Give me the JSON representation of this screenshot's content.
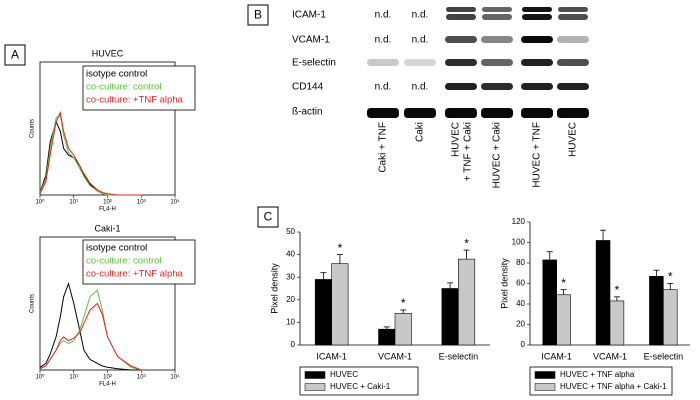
{
  "panels": [
    "A",
    "B",
    "C"
  ],
  "blot": {
    "rows": [
      "ICAM-1",
      "VCAM-1",
      "E-selectin",
      "CD144",
      "ß-actin"
    ],
    "lanes": [
      "Caki + TNF",
      "Caki",
      [
        "HUVEC",
        "+ TNF + Caki"
      ],
      "HUVEC + Caki",
      "HUVEC + TNF",
      "HUVEC"
    ],
    "cells": [
      [
        "n.d.",
        "n.d.",
        null,
        null,
        null,
        null
      ],
      [
        "n.d.",
        "n.d.",
        null,
        null,
        null,
        null
      ],
      [
        null,
        null,
        null,
        null,
        null,
        null
      ],
      [
        "n.d.",
        "n.d.",
        null,
        null,
        null,
        null
      ],
      [
        null,
        null,
        null,
        null,
        null,
        null
      ]
    ]
  },
  "chart_data": [
    {
      "type": "line",
      "title": "HUVEC",
      "xlabel": "FL4-H",
      "ylabel": "Counts",
      "xscale": "log",
      "xlim": [
        1,
        10000
      ],
      "ylim": [
        0,
        100
      ],
      "xticks": [
        {
          "value": 1,
          "label": "10⁰"
        },
        {
          "value": 10,
          "label": "10¹"
        },
        {
          "value": 100,
          "label": "10²"
        },
        {
          "value": 1000,
          "label": "10³"
        },
        {
          "value": 10000,
          "label": "10⁴"
        }
      ],
      "x": [
        1,
        1.5,
        2,
        3,
        4,
        5,
        7,
        10,
        15,
        20,
        30,
        50,
        70,
        100,
        200,
        500,
        1000
      ],
      "series": [
        {
          "name": "isotype control",
          "color": "#000000",
          "values": [
            2,
            15,
            40,
            55,
            48,
            35,
            30,
            28,
            22,
            15,
            8,
            3,
            1,
            0,
            0,
            0,
            0
          ]
        },
        {
          "name": "co-culture: control",
          "color": "#5cc43a",
          "values": [
            2,
            12,
            35,
            58,
            60,
            45,
            32,
            28,
            20,
            14,
            7,
            3,
            1,
            0,
            0,
            0,
            0
          ]
        },
        {
          "name": "co-culture: +TNF alpha",
          "color": "#e0262b",
          "values": [
            1,
            10,
            30,
            55,
            62,
            48,
            35,
            30,
            22,
            16,
            9,
            4,
            2,
            1,
            0,
            0,
            0
          ]
        }
      ]
    },
    {
      "type": "line",
      "title": "Caki-1",
      "xlabel": "FL4-H",
      "ylabel": "Counts",
      "xscale": "log",
      "xlim": [
        1,
        10000
      ],
      "ylim": [
        0,
        100
      ],
      "xticks": [
        {
          "value": 1,
          "label": "10⁰"
        },
        {
          "value": 10,
          "label": "10¹"
        },
        {
          "value": 100,
          "label": "10²"
        },
        {
          "value": 1000,
          "label": "10³"
        },
        {
          "value": 10000,
          "label": "10⁴"
        }
      ],
      "x": [
        1,
        1.5,
        2,
        3,
        4,
        5,
        7,
        10,
        15,
        20,
        30,
        50,
        70,
        100,
        200,
        500,
        1000
      ],
      "series": [
        {
          "name": "isotype control",
          "color": "#000000",
          "values": [
            2,
            5,
            12,
            25,
            40,
            55,
            65,
            50,
            30,
            15,
            8,
            5,
            3,
            2,
            1,
            0,
            0
          ]
        },
        {
          "name": "co-culture: control",
          "color": "#5cc43a",
          "values": [
            1,
            3,
            8,
            15,
            20,
            22,
            20,
            22,
            30,
            40,
            55,
            60,
            45,
            25,
            10,
            2,
            0
          ]
        },
        {
          "name": "co-culture: +TNF alpha",
          "color": "#e0262b",
          "values": [
            1,
            3,
            8,
            15,
            22,
            25,
            22,
            24,
            28,
            35,
            45,
            50,
            42,
            25,
            10,
            3,
            0
          ]
        }
      ]
    },
    {
      "type": "bar",
      "ylabel": "Pixel density",
      "categories": [
        "ICAM-1",
        "VCAM-1",
        "E-selectin"
      ],
      "ylim": [
        0,
        50
      ],
      "yticks": [
        0,
        10,
        20,
        30,
        40,
        50
      ],
      "series": [
        {
          "name": "HUVEC",
          "color": "#000000",
          "values": [
            29,
            7,
            25
          ],
          "errors": [
            3,
            1,
            2.5
          ]
        },
        {
          "name": "HUVEC + Caki-1",
          "color": "#c8c8c8",
          "values": [
            36,
            14,
            38
          ],
          "errors": [
            4,
            1.5,
            4
          ],
          "significance": [
            "*",
            "*",
            "*"
          ]
        }
      ]
    },
    {
      "type": "bar",
      "ylabel": "Pixel density",
      "categories": [
        "ICAM-1",
        "VCAM-1",
        "E-selectin"
      ],
      "ylim": [
        0,
        120
      ],
      "yticks": [
        0,
        20,
        40,
        60,
        80,
        100,
        120
      ],
      "series": [
        {
          "name": "HUVEC + TNF alpha",
          "color": "#000000",
          "values": [
            83,
            102,
            67
          ],
          "errors": [
            8,
            10,
            6
          ]
        },
        {
          "name": "HUVEC + TNF alpha + Caki-1",
          "color": "#c8c8c8",
          "values": [
            49,
            43,
            54
          ],
          "errors": [
            5,
            4,
            6
          ],
          "significance": [
            "*",
            "*",
            "*"
          ]
        }
      ]
    }
  ]
}
